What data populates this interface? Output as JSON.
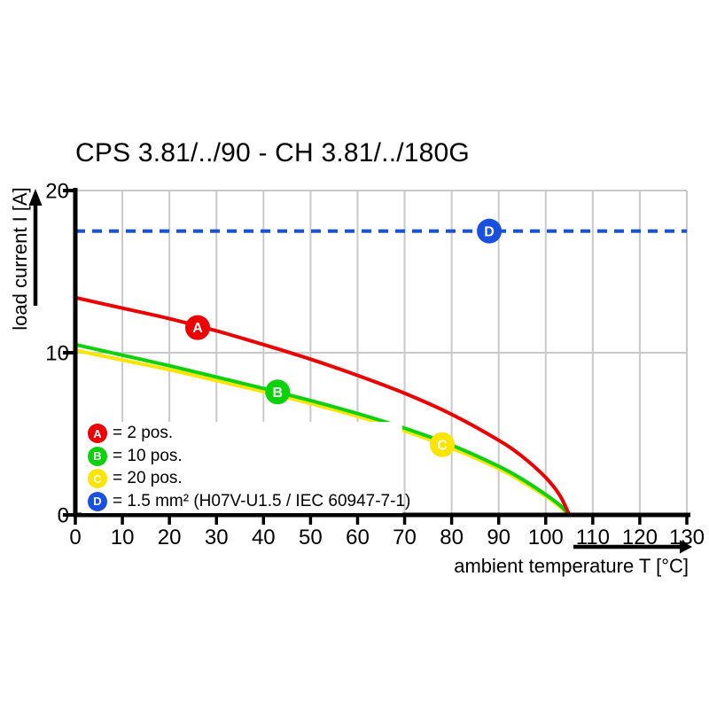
{
  "title": "CPS 3.81/../90 - CH 3.81/../180G",
  "colors": {
    "red": "#ee0000",
    "green": "#0bd20b",
    "yellow": "#fbe400",
    "blue": "#1950e0",
    "gridline": "#c9c9c9",
    "axis": "#000000",
    "marker_letter": "#ffffff"
  },
  "chart_data": {
    "type": "line",
    "title": "CPS 3.81/../90 - CH 3.81/../180G",
    "xlabel": "ambient temperature T [°C]",
    "ylabel": "load current I [A]",
    "xlim": [
      0,
      130
    ],
    "ylim": [
      0,
      20
    ],
    "x_ticks": [
      0,
      10,
      20,
      30,
      40,
      50,
      60,
      70,
      80,
      90,
      100,
      110,
      120,
      130
    ],
    "y_ticks": [
      0,
      10,
      20
    ],
    "grid": true,
    "legend_position": "inside-bottom-left",
    "series": [
      {
        "id": "A",
        "label": "= 2 pos.",
        "name": "2 pos.",
        "color": "#ee0000",
        "style": "solid",
        "marker": {
          "letter": "A",
          "T": 26,
          "I": 11.55
        },
        "points": [
          [
            0,
            13.4
          ],
          [
            10,
            12.75
          ],
          [
            20,
            12.1
          ],
          [
            30,
            11.35
          ],
          [
            40,
            10.5
          ],
          [
            50,
            9.6
          ],
          [
            60,
            8.6
          ],
          [
            70,
            7.5
          ],
          [
            80,
            6.2
          ],
          [
            90,
            4.6
          ],
          [
            95,
            3.6
          ],
          [
            100,
            2.3
          ],
          [
            103,
            1.2
          ],
          [
            105,
            0
          ]
        ]
      },
      {
        "id": "B",
        "label": "= 10 pos.",
        "name": "10 pos.",
        "color": "#0bd20b",
        "style": "solid",
        "marker": {
          "letter": "B",
          "T": 43,
          "I": 7.58
        },
        "points": [
          [
            0,
            10.5
          ],
          [
            10,
            9.85
          ],
          [
            20,
            9.2
          ],
          [
            30,
            8.5
          ],
          [
            40,
            7.8
          ],
          [
            50,
            7.05
          ],
          [
            60,
            6.25
          ],
          [
            70,
            5.35
          ],
          [
            80,
            4.3
          ],
          [
            90,
            3.0
          ],
          [
            95,
            2.2
          ],
          [
            100,
            1.25
          ],
          [
            103,
            0.6
          ],
          [
            105,
            0
          ]
        ]
      },
      {
        "id": "C",
        "label": "= 20 pos.",
        "name": "20 pos.",
        "color": "#fbe400",
        "style": "solid",
        "marker": {
          "letter": "C",
          "T": 78,
          "I": 4.33
        },
        "points": [
          [
            0,
            10.15
          ],
          [
            10,
            9.55
          ],
          [
            20,
            8.95
          ],
          [
            30,
            8.28
          ],
          [
            40,
            7.6
          ],
          [
            50,
            6.87
          ],
          [
            60,
            6.08
          ],
          [
            70,
            5.18
          ],
          [
            80,
            4.12
          ],
          [
            90,
            2.85
          ],
          [
            95,
            2.05
          ],
          [
            100,
            1.15
          ],
          [
            103,
            0.5
          ],
          [
            105,
            0
          ]
        ]
      },
      {
        "id": "D",
        "label": "= 1.5 mm² (H07V-U1.5 / IEC 60947-7-1)",
        "name": "1.5 mm² (H07V-U1.5 / IEC 60947-7-1)",
        "color": "#1950e0",
        "style": "dashed",
        "limit_value": 17.5,
        "marker": {
          "letter": "D",
          "T": 88,
          "I": 17.5
        },
        "points": [
          [
            0,
            17.5
          ],
          [
            130,
            17.5
          ]
        ]
      }
    ]
  }
}
